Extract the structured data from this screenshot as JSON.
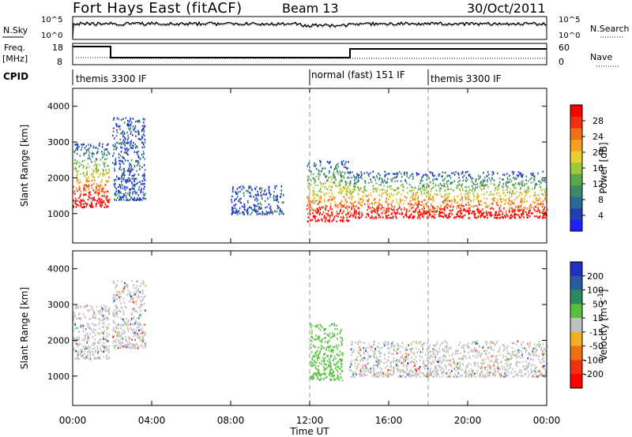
{
  "header": {
    "station": "Fort Hays East (fitACF)",
    "beam": "Beam 13",
    "date": "30/Oct/2011"
  },
  "noise_panel": {
    "left_label": "N.Sky",
    "left_ticks": [
      "10^5",
      "10^0"
    ],
    "right_ticks": [
      "10^5",
      "10^0"
    ],
    "right_label": "N.Search"
  },
  "freq_panel": {
    "left_label_1": "Freq.",
    "left_label_2": "[MHz]",
    "left_ticks": [
      "18",
      "8"
    ],
    "right_ticks": [
      "60",
      "0"
    ],
    "right_label": "Nave"
  },
  "cpid": {
    "label": "CPID",
    "segments": [
      {
        "name": "themis 3300 IF",
        "start_hour": 0
      },
      {
        "name": "normal (fast) 151 IF",
        "start_hour": 12
      },
      {
        "name": "themis 3300 IF",
        "start_hour": 18
      }
    ]
  },
  "chart_data": [
    {
      "type": "heatmap",
      "parameter": "Power",
      "ylabel": "Slant Range [km]",
      "ylim": [
        180,
        4500
      ],
      "yticks": [
        "1000",
        "2000",
        "3000",
        "4000"
      ],
      "xlim_hours": [
        0,
        24
      ],
      "colorbar": {
        "label": "Power [dB]",
        "ticks": [
          "4",
          "8",
          "12",
          "16",
          "20",
          "24",
          "28"
        ],
        "colors": [
          "#1f1fff",
          "#2040b0",
          "#2a6a9a",
          "#3a8a6a",
          "#5aa84a",
          "#9cc83c",
          "#e8d030",
          "#f5a020",
          "#f07018",
          "#f03010",
          "#ff0000"
        ]
      },
      "echo_regions": [
        {
          "start": "00:00",
          "end": "01:50",
          "range_km": [
            1200,
            3000
          ],
          "dominant": "high power"
        },
        {
          "start": "02:00",
          "end": "03:40",
          "range_km": [
            1400,
            3700
          ],
          "dominant": "low power"
        },
        {
          "start": "08:00",
          "end": "10:40",
          "range_km": [
            1000,
            1800
          ],
          "dominant": "low power"
        },
        {
          "start": "11:50",
          "end": "14:00",
          "range_km": [
            800,
            2500
          ],
          "dominant": "high power"
        },
        {
          "start": "14:00",
          "end": "24:00",
          "range_km": [
            900,
            2200
          ],
          "dominant": "high power near 1200 km"
        }
      ]
    },
    {
      "type": "heatmap",
      "parameter": "Velocity",
      "ylabel": "Slant Range [km]",
      "ylim": [
        180,
        4500
      ],
      "yticks": [
        "1000",
        "2000",
        "3000",
        "4000"
      ],
      "xlim_hours": [
        0,
        24
      ],
      "xticks": [
        "00:00",
        "04:00",
        "08:00",
        "12:00",
        "16:00",
        "20:00",
        "00:00"
      ],
      "xlabel": "Time UT",
      "colorbar": {
        "label": "Velocity [m s^-1]",
        "ticks": [
          "200",
          "100",
          "50",
          "15",
          "-15",
          "-50",
          "-100",
          "-200"
        ],
        "colors": [
          "#2030c0",
          "#2a5aa0",
          "#2a8a60",
          "#58c040",
          "#c0c0c0",
          "#f0b020",
          "#f07010",
          "#f03010",
          "#ff0000"
        ]
      },
      "echo_regions": [
        {
          "start": "00:00",
          "end": "01:50",
          "range_km": [
            1500,
            3000
          ],
          "dominant": "ground scatter (grey)"
        },
        {
          "start": "02:00",
          "end": "03:40",
          "range_km": [
            1800,
            3700
          ],
          "dominant": "ground scatter (grey)"
        },
        {
          "start": "12:00",
          "end": "13:40",
          "range_km": [
            900,
            2500
          ],
          "dominant": "positive (green)"
        },
        {
          "start": "14:00",
          "end": "24:00",
          "range_km": [
            1000,
            2000
          ],
          "dominant": "ground scatter (grey)"
        }
      ]
    }
  ]
}
